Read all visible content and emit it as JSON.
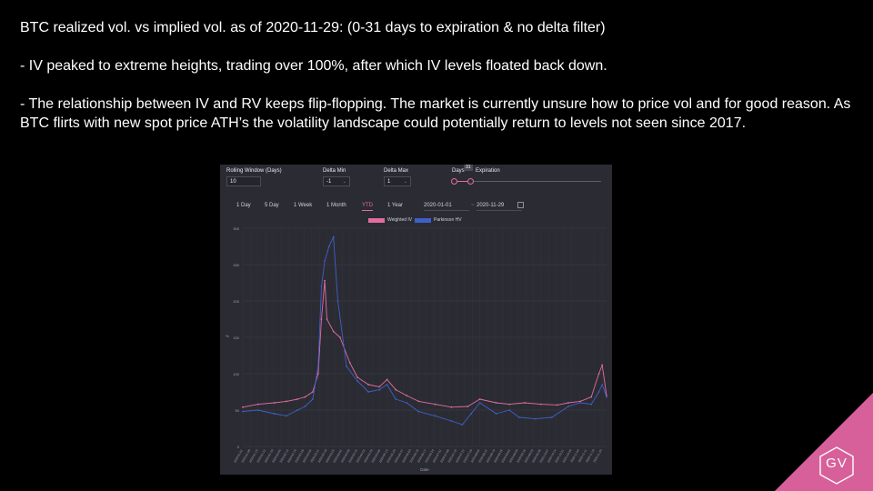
{
  "slide": {
    "title": "BTC realized vol. vs implied vol. as of 2020-11-29: (0-31 days to expiration & no delta filter)",
    "bullet1": "- IV peaked to extreme heights, trading over 100%, after which IV levels floated back down.",
    "bullet2": "- The relationship between IV and RV keeps flip-flopping.  The market is currently unsure how to price vol and for good reason. As BTC flirts with new spot price ATH’s the volatility landscape could potentially return to levels not seen since 2017."
  },
  "controls": {
    "rolling_window_label": "Rolling Window (Days)",
    "rolling_window_value": "10",
    "delta_min_label": "Delta Min",
    "delta_min_value": "-1",
    "delta_max_label": "Delta Max",
    "delta_max_value": "1",
    "days_label": "Days",
    "expiration_label": "Expiration",
    "days_slider_value": "31",
    "days_slider_fraction": 0.11
  },
  "range_buttons": [
    "1 Day",
    "5 Day",
    "1 Week",
    "1 Month",
    "YTD",
    "1 Year"
  ],
  "active_range": "YTD",
  "date_from": "2020-01-01",
  "date_to": "2020-11-29",
  "logo": {
    "text": "GV",
    "color": "#d7609a"
  },
  "chart_data": {
    "type": "line",
    "title": "",
    "xlabel": "Date",
    "ylabel": "%",
    "ylim": [
      0,
      300
    ],
    "yticks": [
      0,
      50,
      100,
      150,
      200,
      250,
      300
    ],
    "grid": true,
    "legend_position": "top-center",
    "x_start": "2020-01-01",
    "x_end": "2020-11-29",
    "series": [
      {
        "name": "Weighted IV",
        "color": "#e36c9e",
        "points": [
          [
            "2020-01-01",
            54
          ],
          [
            "2020-01-15",
            58
          ],
          [
            "2020-01-30",
            60
          ],
          [
            "2020-02-10",
            62
          ],
          [
            "2020-02-20",
            65
          ],
          [
            "2020-02-27",
            68
          ],
          [
            "2020-03-05",
            75
          ],
          [
            "2020-03-10",
            100
          ],
          [
            "2020-03-13",
            175
          ],
          [
            "2020-03-16",
            228
          ],
          [
            "2020-03-18",
            175
          ],
          [
            "2020-03-24",
            158
          ],
          [
            "2020-03-30",
            150
          ],
          [
            "2020-04-08",
            115
          ],
          [
            "2020-04-15",
            95
          ],
          [
            "2020-04-25",
            85
          ],
          [
            "2020-05-05",
            82
          ],
          [
            "2020-05-12",
            92
          ],
          [
            "2020-05-20",
            78
          ],
          [
            "2020-05-30",
            70
          ],
          [
            "2020-06-10",
            62
          ],
          [
            "2020-06-25",
            58
          ],
          [
            "2020-07-10",
            54
          ],
          [
            "2020-07-25",
            55
          ],
          [
            "2020-08-05",
            65
          ],
          [
            "2020-08-20",
            60
          ],
          [
            "2020-09-01",
            58
          ],
          [
            "2020-09-15",
            60
          ],
          [
            "2020-09-30",
            58
          ],
          [
            "2020-10-15",
            57
          ],
          [
            "2020-10-25",
            60
          ],
          [
            "2020-11-05",
            62
          ],
          [
            "2020-11-15",
            68
          ],
          [
            "2020-11-22",
            100
          ],
          [
            "2020-11-25",
            112
          ],
          [
            "2020-11-29",
            70
          ]
        ]
      },
      {
        "name": "Parkinson HV",
        "color": "#3f5fc9",
        "points": [
          [
            "2020-01-01",
            48
          ],
          [
            "2020-01-15",
            50
          ],
          [
            "2020-01-30",
            45
          ],
          [
            "2020-02-10",
            42
          ],
          [
            "2020-02-20",
            50
          ],
          [
            "2020-02-27",
            55
          ],
          [
            "2020-03-05",
            65
          ],
          [
            "2020-03-10",
            110
          ],
          [
            "2020-03-13",
            220
          ],
          [
            "2020-03-16",
            255
          ],
          [
            "2020-03-20",
            275
          ],
          [
            "2020-03-24",
            288
          ],
          [
            "2020-03-28",
            200
          ],
          [
            "2020-04-05",
            110
          ],
          [
            "2020-04-15",
            90
          ],
          [
            "2020-04-25",
            75
          ],
          [
            "2020-05-05",
            78
          ],
          [
            "2020-05-12",
            85
          ],
          [
            "2020-05-20",
            65
          ],
          [
            "2020-05-30",
            60
          ],
          [
            "2020-06-10",
            48
          ],
          [
            "2020-06-25",
            42
          ],
          [
            "2020-07-10",
            35
          ],
          [
            "2020-07-20",
            30
          ],
          [
            "2020-07-28",
            45
          ],
          [
            "2020-08-05",
            60
          ],
          [
            "2020-08-20",
            45
          ],
          [
            "2020-09-01",
            50
          ],
          [
            "2020-09-10",
            40
          ],
          [
            "2020-09-25",
            38
          ],
          [
            "2020-10-10",
            40
          ],
          [
            "2020-10-25",
            55
          ],
          [
            "2020-11-05",
            60
          ],
          [
            "2020-11-15",
            58
          ],
          [
            "2020-11-22",
            75
          ],
          [
            "2020-11-25",
            85
          ],
          [
            "2020-11-29",
            68
          ]
        ]
      }
    ]
  }
}
